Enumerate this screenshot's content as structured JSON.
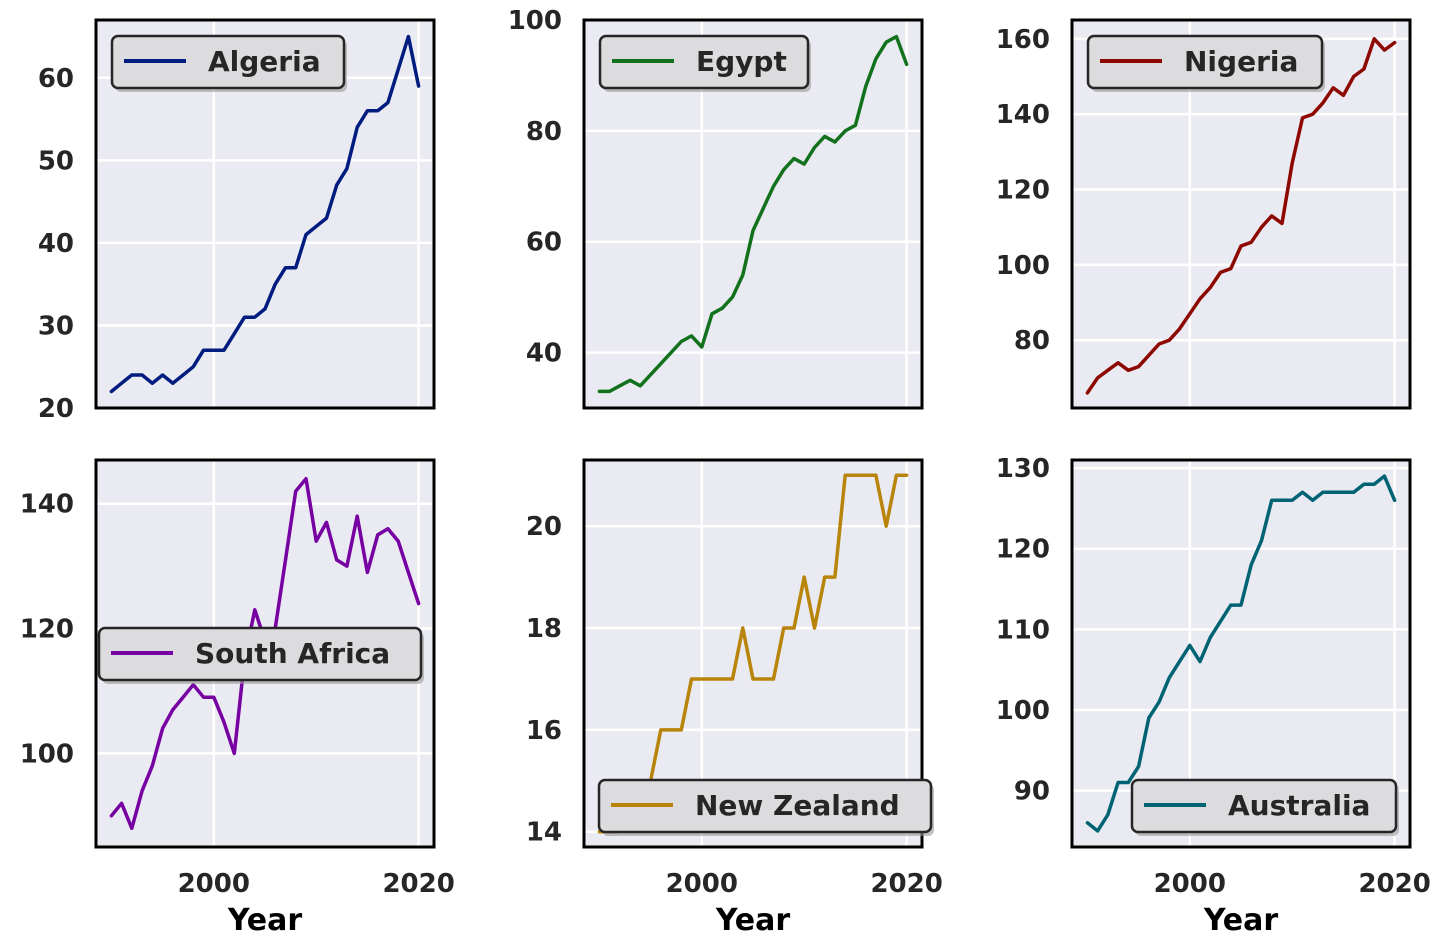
{
  "chart_data": [
    {
      "type": "line",
      "series": [
        {
          "name": "Algeria",
          "color": "#001c7f",
          "x": [
            1990,
            1991,
            1992,
            1993,
            1994,
            1995,
            1996,
            1997,
            1998,
            1999,
            2000,
            2001,
            2002,
            2003,
            2004,
            2005,
            2006,
            2007,
            2008,
            2009,
            2010,
            2011,
            2012,
            2013,
            2014,
            2015,
            2016,
            2017,
            2018,
            2019,
            2020
          ],
          "values": [
            22,
            23,
            24,
            24,
            23,
            24,
            23,
            24,
            25,
            27,
            27,
            27,
            29,
            31,
            31,
            32,
            35,
            37,
            37,
            41,
            42,
            43,
            47,
            49,
            54,
            56,
            56,
            57,
            61,
            65,
            59
          ]
        }
      ],
      "xlabel": "",
      "ylim": [
        20,
        67
      ],
      "yticks": [
        20,
        30,
        40,
        50,
        60
      ],
      "xlim": [
        1988.5,
        2021.5
      ],
      "legend": "upper left",
      "grid": true
    },
    {
      "type": "line",
      "series": [
        {
          "name": "Egypt",
          "color": "#12711c",
          "x": [
            1990,
            1991,
            1992,
            1993,
            1994,
            1995,
            1996,
            1997,
            1998,
            1999,
            2000,
            2001,
            2002,
            2003,
            2004,
            2005,
            2006,
            2007,
            2008,
            2009,
            2010,
            2011,
            2012,
            2013,
            2014,
            2015,
            2016,
            2017,
            2018,
            2019,
            2020
          ],
          "values": [
            33,
            33,
            34,
            35,
            34,
            36,
            38,
            40,
            42,
            43,
            41,
            47,
            48,
            50,
            54,
            62,
            66,
            70,
            73,
            75,
            74,
            77,
            79,
            78,
            80,
            81,
            88,
            93,
            96,
            97,
            92
          ]
        }
      ],
      "xlabel": "",
      "ylim": [
        30,
        100
      ],
      "yticks": [
        40,
        60,
        80,
        100
      ],
      "xlim": [
        1988.5,
        2021.5
      ],
      "legend": "upper left",
      "grid": true
    },
    {
      "type": "line",
      "series": [
        {
          "name": "Nigeria",
          "color": "#8c0800",
          "x": [
            1990,
            1991,
            1992,
            1993,
            1994,
            1995,
            1996,
            1997,
            1998,
            1999,
            2000,
            2001,
            2002,
            2003,
            2004,
            2005,
            2006,
            2007,
            2008,
            2009,
            2010,
            2011,
            2012,
            2013,
            2014,
            2015,
            2016,
            2017,
            2018,
            2019,
            2020
          ],
          "values": [
            66,
            70,
            72,
            74,
            72,
            73,
            76,
            79,
            80,
            83,
            87,
            91,
            94,
            98,
            99,
            105,
            106,
            110,
            113,
            111,
            127,
            139,
            140,
            143,
            147,
            145,
            150,
            152,
            160,
            157,
            159
          ]
        }
      ],
      "xlabel": "",
      "ylim": [
        62,
        165
      ],
      "yticks": [
        80,
        100,
        120,
        140,
        160
      ],
      "xlim": [
        1988.5,
        2021.5
      ],
      "legend": "upper left",
      "grid": true
    },
    {
      "type": "line",
      "series": [
        {
          "name": "South Africa",
          "color": "#7600a1",
          "x": [
            1990,
            1991,
            1992,
            1993,
            1994,
            1995,
            1996,
            1997,
            1998,
            1999,
            2000,
            2001,
            2002,
            2003,
            2004,
            2005,
            2006,
            2007,
            2008,
            2009,
            2010,
            2011,
            2012,
            2013,
            2014,
            2015,
            2016,
            2017,
            2018,
            2019,
            2020
          ],
          "values": [
            90,
            92,
            88,
            94,
            98,
            104,
            107,
            109,
            111,
            109,
            109,
            105,
            100,
            115,
            123,
            118,
            120,
            131,
            142,
            144,
            134,
            137,
            131,
            130,
            138,
            129,
            135,
            136,
            134,
            129,
            124
          ]
        }
      ],
      "xlabel": "Year",
      "ylim": [
        85,
        147
      ],
      "yticks": [
        100,
        120,
        140
      ],
      "xlim": [
        1988.5,
        2021.5
      ],
      "xticks": [
        2000,
        2020
      ],
      "legend": "center left",
      "grid": true
    },
    {
      "type": "line",
      "series": [
        {
          "name": "New Zealand",
          "color": "#b8850a",
          "x": [
            1990,
            1991,
            1992,
            1993,
            1994,
            1995,
            1996,
            1997,
            1998,
            1999,
            2000,
            2001,
            2002,
            2003,
            2004,
            2005,
            2006,
            2007,
            2008,
            2009,
            2010,
            2011,
            2012,
            2013,
            2014,
            2015,
            2016,
            2017,
            2018,
            2019,
            2020
          ],
          "values": [
            14,
            14,
            14,
            15,
            15,
            15,
            16,
            16,
            16,
            17,
            17,
            17,
            17,
            17,
            18,
            17,
            17,
            17,
            18,
            18,
            19,
            18,
            19,
            19,
            21,
            21,
            21,
            21,
            20,
            21,
            21
          ]
        }
      ],
      "xlabel": "Year",
      "ylim": [
        13.7,
        21.3
      ],
      "yticks": [
        14,
        16,
        18,
        20
      ],
      "xlim": [
        1988.5,
        2021.5
      ],
      "xticks": [
        2000,
        2020
      ],
      "legend": "lower right",
      "grid": true
    },
    {
      "type": "line",
      "series": [
        {
          "name": "Australia",
          "color": "#006374",
          "x": [
            1990,
            1991,
            1992,
            1993,
            1994,
            1995,
            1996,
            1997,
            1998,
            1999,
            2000,
            2001,
            2002,
            2003,
            2004,
            2005,
            2006,
            2007,
            2008,
            2009,
            2010,
            2011,
            2012,
            2013,
            2014,
            2015,
            2016,
            2017,
            2018,
            2019,
            2020
          ],
          "values": [
            86,
            85,
            87,
            91,
            91,
            93,
            99,
            101,
            104,
            106,
            108,
            106,
            109,
            111,
            113,
            113,
            118,
            121,
            126,
            126,
            126,
            127,
            126,
            127,
            127,
            127,
            127,
            128,
            128,
            129,
            126
          ]
        }
      ],
      "xlabel": "Year",
      "ylim": [
        83,
        131
      ],
      "yticks": [
        90,
        100,
        110,
        120,
        130
      ],
      "xlim": [
        1988.5,
        2021.5
      ],
      "xticks": [
        2000,
        2020
      ],
      "legend": "lower right",
      "grid": true
    }
  ],
  "style": {
    "axes_bg": "#eaeaf2",
    "grid_color": "#ffffff",
    "spine_color": "#000000",
    "legend_bg": "#dcdcdf",
    "legend_edge": "#262626"
  }
}
